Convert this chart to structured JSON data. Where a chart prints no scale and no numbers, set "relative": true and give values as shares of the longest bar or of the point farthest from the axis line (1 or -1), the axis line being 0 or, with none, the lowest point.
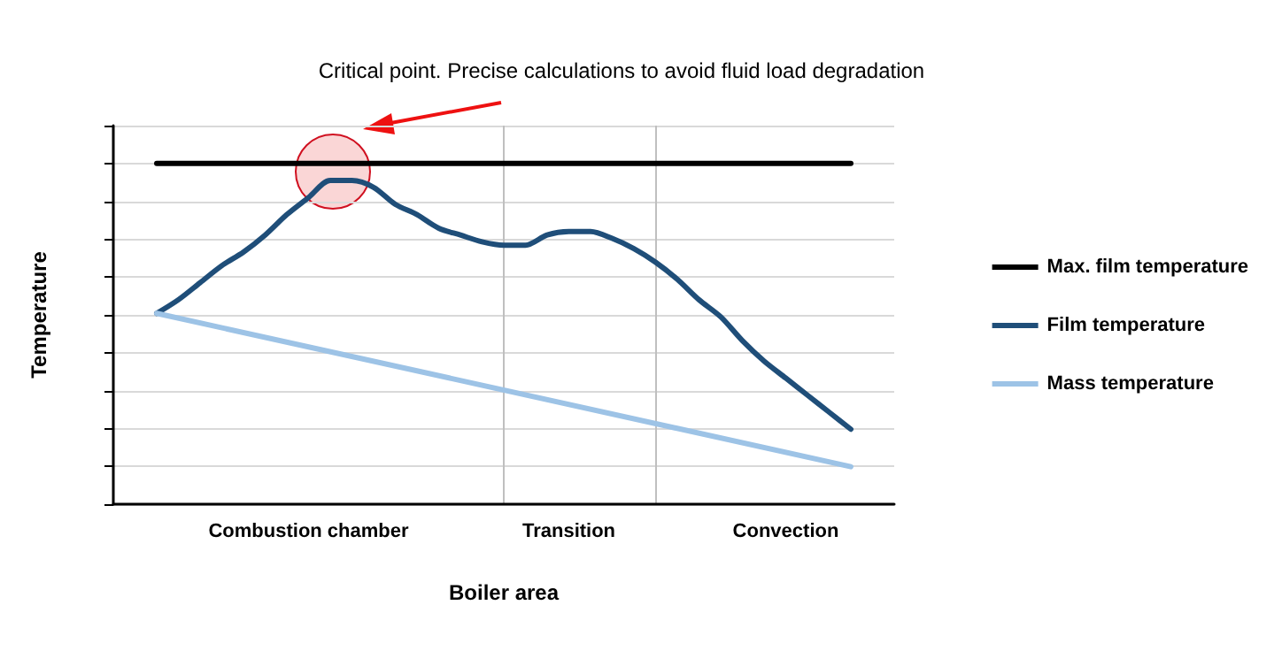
{
  "chart_data": {
    "type": "line",
    "relative": true,
    "xlabel": "Boiler area",
    "ylabel": "Temperature",
    "tick_labels": "x",
    "grid": true,
    "legend": "right",
    "marker": "none",
    "line_style": "solid",
    "categories": [
      null,
      null,
      null,
      null,
      null,
      null,
      null,
      null,
      null,
      "Combustion chamber",
      null,
      null,
      null,
      null,
      null,
      null,
      null,
      null,
      null,
      null,
      null,
      "Transition",
      null,
      null,
      null,
      null,
      null,
      null,
      null,
      null,
      null,
      "Convection",
      null,
      null,
      null,
      null,
      null
    ],
    "series": [
      {
        "name": "Max. film temperature",
        "color": "#000000",
        "values": [
          null,
          null,
          1,
          null,
          null,
          null,
          null,
          null,
          null,
          null,
          null,
          null,
          null,
          null,
          null,
          null,
          null,
          null,
          null,
          null,
          null,
          null,
          null,
          null,
          null,
          null,
          null,
          null,
          null,
          null,
          null,
          null,
          null,
          null,
          1,
          null,
          null
        ]
      },
      {
        "name": "Film temperature",
        "color": "#1f4e79",
        "values": [
          null,
          null,
          0.56,
          0.6,
          0.65,
          0.7,
          0.74,
          0.79,
          0.85,
          0.9,
          0.95,
          0.95,
          0.93,
          0.88,
          0.85,
          0.81,
          0.79,
          0.77,
          0.76,
          0.76,
          0.79,
          0.8,
          0.8,
          0.78,
          0.75,
          0.71,
          0.66,
          0.6,
          0.55,
          0.48,
          0.42,
          0.37,
          0.32,
          0.27,
          0.22,
          null,
          null
        ]
      },
      {
        "name": "Mass temperature",
        "color": "#9dc3e6",
        "values": [
          null,
          null,
          0.56,
          null,
          null,
          null,
          null,
          null,
          null,
          null,
          null,
          null,
          null,
          null,
          null,
          null,
          null,
          null,
          null,
          null,
          null,
          null,
          null,
          null,
          null,
          null,
          null,
          null,
          null,
          null,
          null,
          null,
          null,
          null,
          0.11,
          null,
          null
        ]
      }
    ],
    "annotations": [
      "Critical point. Precise calculations to avoid fluid load degradation"
    ]
  }
}
